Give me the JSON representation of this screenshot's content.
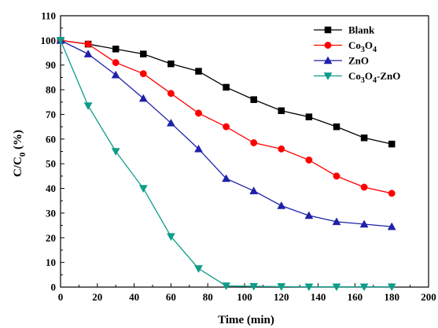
{
  "chart_data": {
    "type": "line",
    "title": "",
    "xlabel": "Time (min)",
    "ylabel_parts": [
      "C/C",
      "0",
      " (%)"
    ],
    "xlim": [
      0,
      200
    ],
    "ylim": [
      0,
      110
    ],
    "xticks": [
      0,
      20,
      40,
      60,
      80,
      100,
      120,
      140,
      160,
      180,
      200
    ],
    "yticks": [
      0,
      10,
      20,
      30,
      40,
      50,
      60,
      70,
      80,
      90,
      100,
      110
    ],
    "grid": false,
    "legend_position": "top-right",
    "x": [
      0,
      15,
      30,
      45,
      60,
      75,
      90,
      105,
      120,
      135,
      150,
      165,
      180
    ],
    "series": [
      {
        "name": "Blank",
        "label_parts": [
          [
            "Blank",
            ""
          ]
        ],
        "color": "#000000",
        "marker": "square",
        "values": [
          100,
          98.5,
          96.5,
          94.5,
          90.5,
          87.5,
          81,
          76,
          71.5,
          69,
          65,
          60.5,
          58
        ]
      },
      {
        "name": "Co3O4",
        "label_parts": [
          [
            "Co",
            ""
          ],
          [
            "3",
            "sub"
          ],
          [
            "O",
            ""
          ],
          [
            "4",
            "sub"
          ]
        ],
        "color": "#ff0000",
        "marker": "circle",
        "values": [
          100,
          98.5,
          91,
          86.5,
          78.5,
          70.5,
          65,
          58.5,
          56,
          51.5,
          45,
          40.5,
          38
        ]
      },
      {
        "name": "ZnO",
        "label_parts": [
          [
            "ZnO",
            ""
          ]
        ],
        "color": "#1f22a8",
        "marker": "triangle-up",
        "values": [
          100,
          94.5,
          86,
          76.5,
          66.5,
          56,
          44,
          39,
          33,
          29,
          26.5,
          25.5,
          24.5
        ]
      },
      {
        "name": "Co3O4-ZnO",
        "label_parts": [
          [
            "Co",
            ""
          ],
          [
            "3",
            "sub"
          ],
          [
            "O",
            ""
          ],
          [
            "4",
            "sub"
          ],
          [
            "-ZnO",
            ""
          ]
        ],
        "color": "#0e9c8a",
        "marker": "triangle-down",
        "values": [
          100,
          73.5,
          55,
          40,
          20.5,
          7.5,
          0.5,
          0.3,
          0.2,
          0.1,
          0.1,
          0.1,
          0.1
        ]
      }
    ]
  }
}
